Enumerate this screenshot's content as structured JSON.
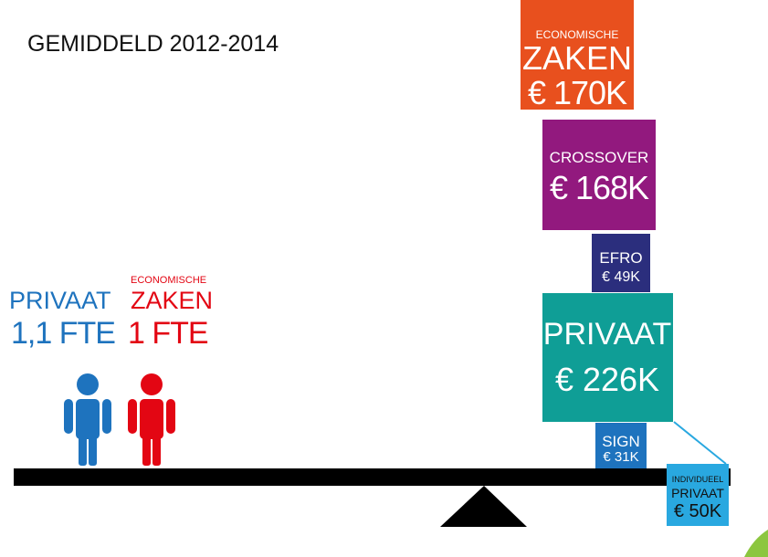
{
  "title": "GEMIDDELD 2012-2014",
  "people": [
    {
      "label": "PRIVAAT",
      "fte": "1,1 FTE"
    },
    {
      "sublabel": "ECONOMISCHE",
      "label": "ZAKEN",
      "fte": "1 FTE"
    }
  ],
  "blocks": [
    {
      "sublabel": "ECONOMISCHE",
      "label": "ZAKEN",
      "amount": "€ 170K"
    },
    {
      "label": "CROSSOVER",
      "amount": "€ 168K"
    },
    {
      "label": "EFRO",
      "amount": "€ 49K"
    },
    {
      "label": "PRIVAAT",
      "amount": "€ 226K"
    },
    {
      "label": "SIGN",
      "amount": "€ 31K"
    },
    {
      "sublabel": "INDIVIDUEEL",
      "label": "PRIVAAT",
      "amount": "€ 50K"
    }
  ]
}
